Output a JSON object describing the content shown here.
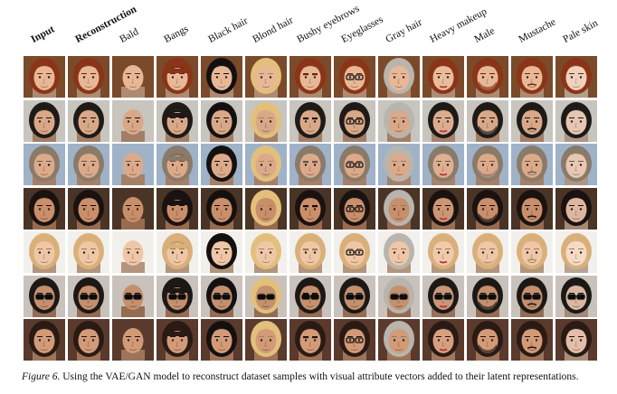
{
  "figure": {
    "columns": [
      {
        "label": "Input",
        "bold": true
      },
      {
        "label": "Reconstruction",
        "bold": true
      },
      {
        "label": "Bald"
      },
      {
        "label": "Bangs"
      },
      {
        "label": "Black hair"
      },
      {
        "label": "Blond hair"
      },
      {
        "label": "Bushy eyebrows"
      },
      {
        "label": "Eyeglasses"
      },
      {
        "label": "Gray hair"
      },
      {
        "label": "Heavy makeup"
      },
      {
        "label": "Male"
      },
      {
        "label": "Mustache"
      },
      {
        "label": "Pale skin"
      }
    ],
    "rows": [
      {
        "subject": "red-haired woman",
        "bg": "#7a4a2a",
        "skin": "#e8b896",
        "hair": "#8a3418"
      },
      {
        "subject": "dark-haired man",
        "bg": "#c8c4be",
        "skin": "#d9a888",
        "hair": "#1e1a18"
      },
      {
        "subject": "older man",
        "bg": "#9fb2c8",
        "skin": "#dcaa8a",
        "hair": "#8a7a68"
      },
      {
        "subject": "dark-haired woman",
        "bg": "#4a3426",
        "skin": "#c98e6a",
        "hair": "#1a1210"
      },
      {
        "subject": "blond woman",
        "bg": "#f2f0ec",
        "skin": "#efc7a6",
        "hair": "#d9b07a"
      },
      {
        "subject": "man with sunglasses",
        "bg": "#c9c2bc",
        "skin": "#c4906e",
        "hair": "#1c1816"
      },
      {
        "subject": "dark-haired woman",
        "bg": "#5a3a2c",
        "skin": "#d39a78",
        "hair": "#2a1a14"
      }
    ],
    "caption_figure_label": "Figure 6.",
    "caption_text": "Using the VAE/GAN model to reconstruct dataset samples with visual attribute vectors added to their latent representations."
  }
}
